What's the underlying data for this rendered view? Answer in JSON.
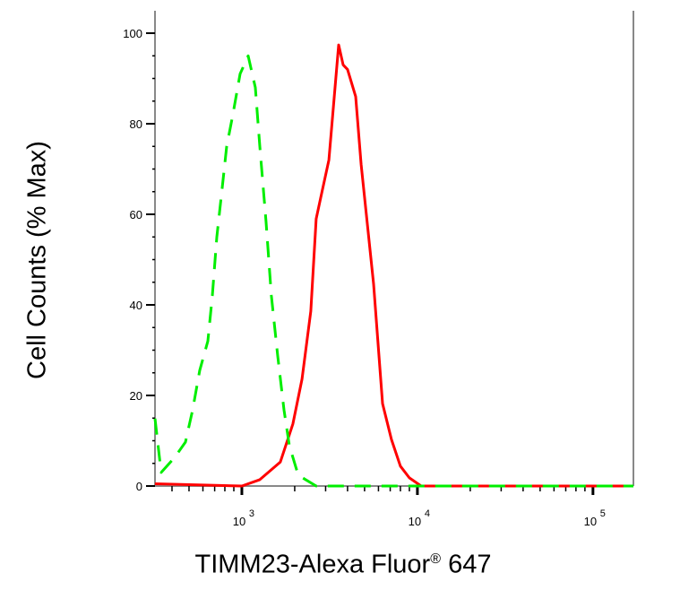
{
  "chart_data": {
    "type": "line",
    "title": "",
    "xlabel_main": "TIMM23-Alexa Fluor",
    "xlabel_sup": "®",
    "xlabel_suffix": " 647",
    "ylabel": "Cell Counts (% Max)",
    "x_scale": "log",
    "xlim": [
      320,
      170000
    ],
    "ylim": [
      0,
      100
    ],
    "y_ticks": [
      0,
      20,
      40,
      60,
      80,
      100
    ],
    "x_ticks": [
      {
        "base": "10",
        "exp": "3",
        "value": 1000
      },
      {
        "base": "10",
        "exp": "4",
        "value": 10000
      },
      {
        "base": "10",
        "exp": "5",
        "value": 100000
      }
    ],
    "grid": false,
    "series": [
      {
        "color": "#ff0000",
        "style": "solid",
        "x": [
          320,
          1000,
          1265,
          1656,
          1953,
          2200,
          2470,
          2650,
          2810,
          3130,
          3560,
          3775,
          4000,
          4450,
          4780,
          5630,
          6330,
          7110,
          8000,
          9000,
          10500,
          170000
        ],
        "y": [
          0.5,
          0,
          1.4,
          5.3,
          13.7,
          23.6,
          38.6,
          59,
          63.6,
          72,
          97.4,
          93,
          92,
          86,
          71,
          44.6,
          18.2,
          10.3,
          4.4,
          1.8,
          0,
          0
        ]
      },
      {
        "color": "#00ee00",
        "style": "dashed",
        "x": [
          320,
          347,
          414,
          477,
          524,
          575,
          640,
          679,
          720,
          773,
          819,
          889,
          977,
          1086,
          1193,
          1265,
          1373,
          1473,
          1600,
          1738,
          1864,
          2095,
          2650,
          170000
        ],
        "y": [
          14.9,
          3,
          6.3,
          9.7,
          16.8,
          25.5,
          32,
          42,
          55,
          66,
          75,
          82,
          91,
          95,
          88,
          75,
          58.5,
          42,
          28.7,
          16.8,
          8.9,
          2.4,
          0,
          0
        ]
      }
    ]
  }
}
